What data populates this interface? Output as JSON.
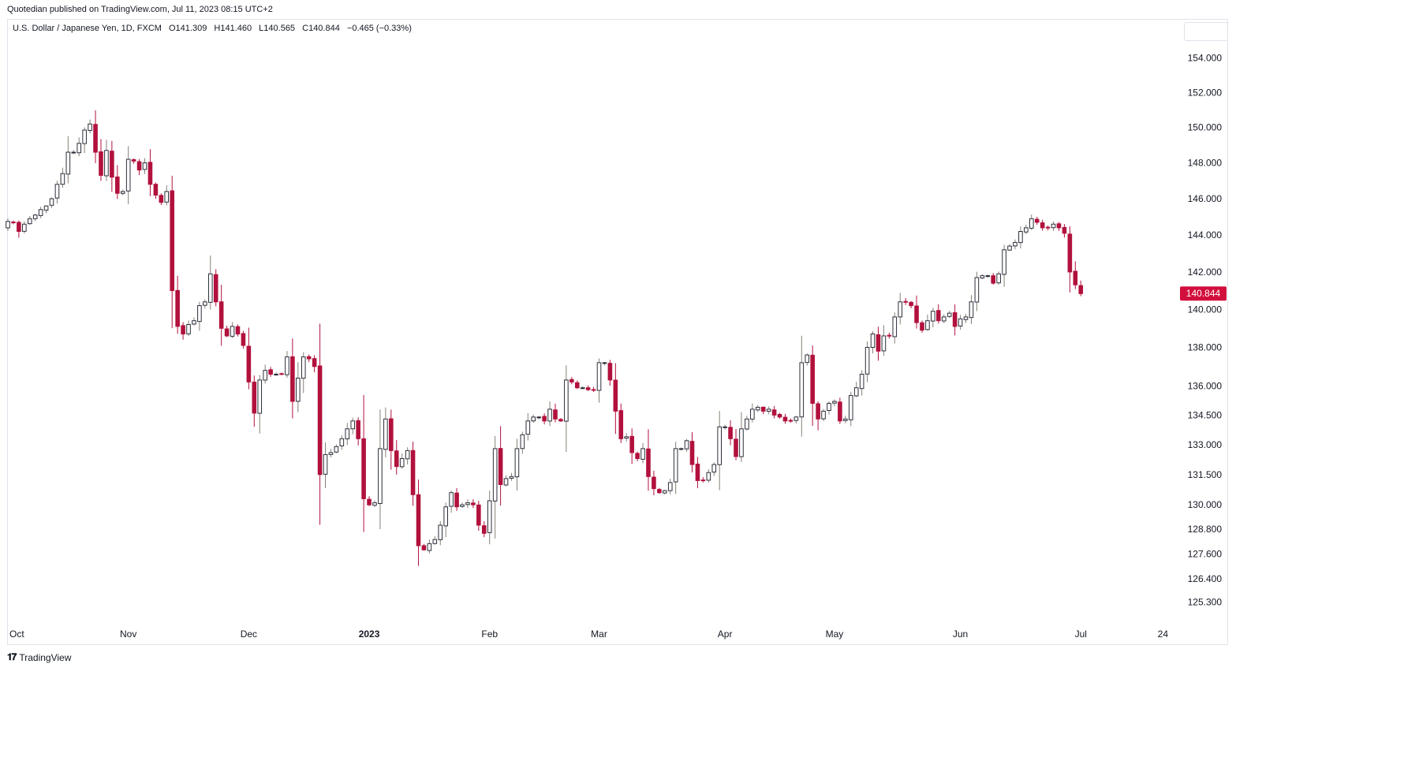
{
  "header": {
    "published": "Quotedian published on TradingView.com, Jul 11, 2023 08:15 UTC+2"
  },
  "legend": {
    "symbol": "U.S. Dollar / Japanese Yen, 1D, FXCM",
    "open": "O141.309",
    "high": "H141.460",
    "low": "L140.565",
    "close": "C140.844",
    "change": "−0.465 (−0.33%)"
  },
  "footer": {
    "brand": "TradingView",
    "logo": "tradingview-logo-icon"
  },
  "colors": {
    "up": "#868076",
    "up_body": "#ffffff",
    "down": "#b2113d",
    "price_label_bg": "#d20f3c",
    "axis_text": "#131722"
  },
  "chart_data": {
    "type": "candlestick",
    "y_scale": "log",
    "ylim": [
      124.6,
      155.0
    ],
    "y_ticks": [
      {
        "value": 154,
        "label": "154.000"
      },
      {
        "value": 152,
        "label": "152.000"
      },
      {
        "value": 150,
        "label": "150.000"
      },
      {
        "value": 148,
        "label": "148.000"
      },
      {
        "value": 146,
        "label": "146.000"
      },
      {
        "value": 144,
        "label": "144.000"
      },
      {
        "value": 142,
        "label": "142.000"
      },
      {
        "value": 140,
        "label": "140.000"
      },
      {
        "value": 138,
        "label": "138.000"
      },
      {
        "value": 136,
        "label": "136.000"
      },
      {
        "value": 134.5,
        "label": "134.500"
      },
      {
        "value": 133,
        "label": "133.000"
      },
      {
        "value": 131.5,
        "label": "131.500"
      },
      {
        "value": 130,
        "label": "130.000"
      },
      {
        "value": 128.8,
        "label": "128.800"
      },
      {
        "value": 127.6,
        "label": "127.600"
      },
      {
        "value": 126.4,
        "label": "126.400"
      },
      {
        "value": 125.3,
        "label": "125.300"
      }
    ],
    "last_price": {
      "value": 140.844,
      "label": "140.844"
    },
    "x_ticks": [
      {
        "index": 0,
        "label": "Oct",
        "bold": false
      },
      {
        "index": 22,
        "label": "Nov",
        "bold": false
      },
      {
        "index": 44,
        "label": "Dec",
        "bold": false
      },
      {
        "index": 66,
        "label": "2023",
        "bold": true
      },
      {
        "index": 88,
        "label": "Feb",
        "bold": false
      },
      {
        "index": 108,
        "label": "Mar",
        "bold": false
      },
      {
        "index": 131,
        "label": "Apr",
        "bold": false
      },
      {
        "index": 151,
        "label": "May",
        "bold": false
      },
      {
        "index": 174,
        "label": "Jun",
        "bold": false
      },
      {
        "index": 196,
        "label": "Jul",
        "bold": false
      },
      {
        "index": 211,
        "label": "24",
        "bold": false
      }
    ],
    "closes": [
      144.75,
      144.7,
      144.2,
      144.6,
      144.9,
      145.1,
      145.4,
      145.6,
      146.0,
      146.8,
      147.4,
      148.6,
      148.6,
      149.1,
      149.85,
      150.2,
      148.6,
      147.3,
      148.7,
      147.2,
      146.3,
      146.4,
      148.2,
      148.1,
      147.6,
      148.0,
      146.8,
      146.2,
      145.8,
      146.4,
      141.0,
      139.1,
      138.7,
      139.2,
      139.4,
      140.2,
      140.4,
      141.9,
      140.4,
      139.0,
      138.6,
      139.1,
      138.7,
      138.1,
      136.2,
      134.6,
      136.3,
      136.8,
      136.6,
      136.6,
      136.6,
      137.5,
      135.2,
      136.4,
      137.5,
      137.4,
      137.0,
      131.5,
      132.5,
      132.6,
      132.9,
      133.3,
      133.8,
      134.2,
      133.3,
      130.3,
      130.0,
      130.1,
      132.8,
      134.3,
      132.7,
      131.9,
      132.3,
      132.7,
      130.5,
      128.0,
      127.8,
      128.1,
      128.3,
      129.0,
      129.9,
      130.6,
      129.9,
      130.0,
      130.1,
      130.0,
      129.0,
      128.6,
      130.2,
      132.8,
      131.0,
      131.3,
      131.4,
      132.8,
      133.5,
      134.2,
      134.4,
      134.4,
      134.2,
      134.8,
      134.3,
      134.2,
      136.3,
      136.2,
      135.9,
      135.9,
      135.8,
      135.8,
      137.2,
      137.2,
      136.3,
      134.7,
      133.3,
      133.4,
      132.6,
      132.3,
      132.8,
      131.4,
      130.8,
      130.6,
      130.7,
      131.1,
      132.8,
      132.8,
      133.2,
      132.0,
      131.2,
      131.2,
      131.6,
      132.0,
      133.9,
      133.9,
      133.3,
      132.4,
      133.8,
      134.3,
      134.8,
      134.9,
      134.7,
      134.8,
      134.5,
      134.4,
      134.2,
      134.2,
      134.4,
      137.2,
      137.6,
      135.1,
      134.3,
      134.7,
      135.1,
      135.2,
      134.2,
      134.3,
      135.5,
      135.9,
      136.6,
      138.0,
      138.7,
      137.8,
      138.6,
      138.6,
      139.6,
      140.4,
      140.4,
      140.2,
      139.3,
      138.9,
      139.4,
      139.9,
      139.4,
      139.6,
      139.8,
      139.1,
      139.5,
      139.6,
      140.4,
      141.7,
      141.8,
      141.8,
      141.4,
      141.9,
      143.2,
      143.4,
      143.6,
      144.2,
      144.4,
      144.9,
      144.7,
      144.4,
      144.4,
      144.6,
      144.4,
      144.1,
      142.0,
      141.31,
      140.84
    ]
  }
}
